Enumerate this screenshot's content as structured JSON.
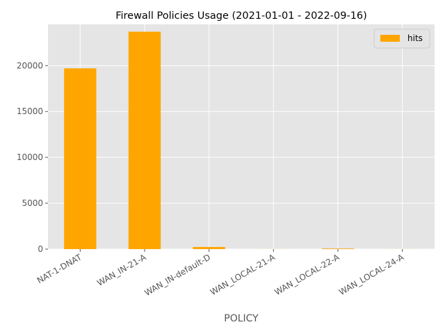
{
  "chart_data": {
    "type": "bar",
    "title": "Firewall Policies Usage (2021-01-01 - 2022-09-16)",
    "xlabel": "POLICY",
    "ylabel": "",
    "categories": [
      "NAT-1-DNAT",
      "WAN_IN-21-A",
      "WAN_IN-default-D",
      "WAN_LOCAL-21-A",
      "WAN_LOCAL-22-A",
      "WAN_LOCAL-24-A"
    ],
    "series": [
      {
        "name": "hits",
        "values": [
          19700,
          23700,
          230,
          5,
          60,
          5
        ],
        "color": "#ffa500"
      }
    ],
    "ylim": [
      0,
      24500
    ],
    "yticks": [
      0,
      5000,
      10000,
      15000,
      20000
    ],
    "grid": true,
    "background": "#e5e5e5",
    "legend_position": "top-right"
  }
}
